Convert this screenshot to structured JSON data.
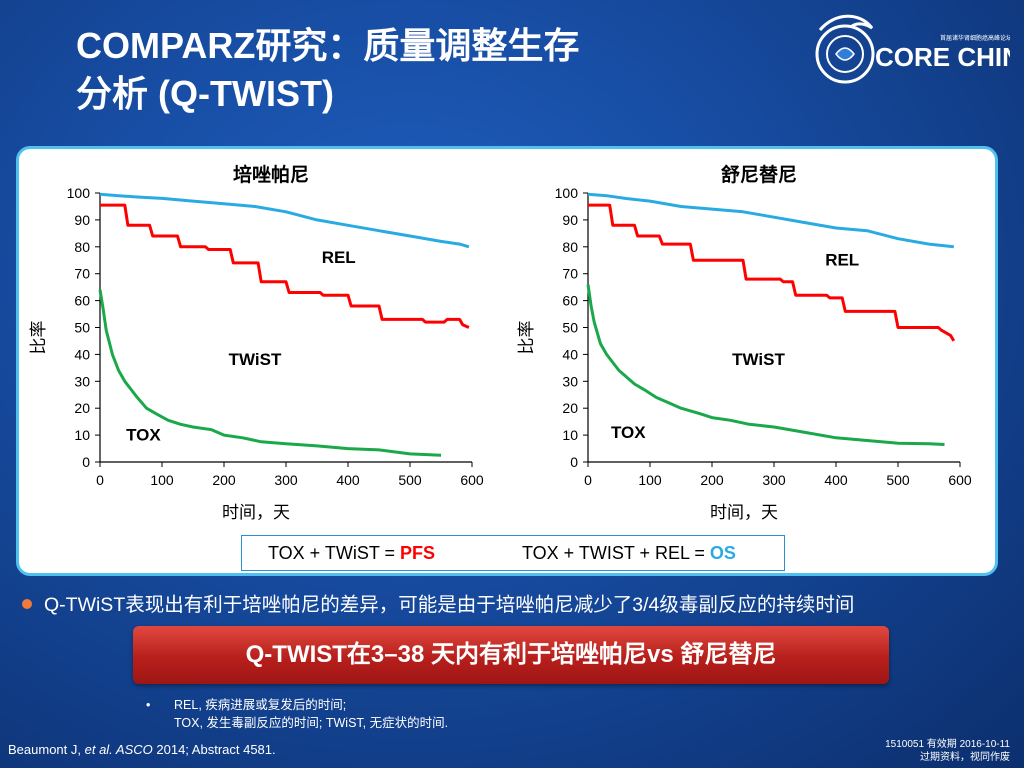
{
  "slide": {
    "title_line1": "COMPARZ研究：质量调整生存",
    "title_line2": "分析 (Q-TWIST)",
    "logo": {
      "text": "CORE CHINA",
      "subtitle": "首届诸华肾细胞癌高峰论坛",
      "accent": "#ffffff"
    },
    "bullet": "Q-TWiST表现出有利于培唑帕尼的差异，可能是由于培唑帕尼减少了3/4级毒副反应的持续时间",
    "banner": "Q-TWIST在3–38 天内有利于培唑帕尼vs 舒尼替尼",
    "notes": {
      "bullet": "•",
      "line1": "REL, 疾病进展或复发后的时间;",
      "line2": "TOX, 发生毒副反应的时间; TWiST, 无症状的时间."
    },
    "citation_prefix": "Beaumont J, ",
    "citation_italic": "et al. ASCO",
    "citation_suffix": " 2014; Abstract 4581.",
    "validity_line1": "1510051  有效期 2016-10-11",
    "validity_line2": "过期资料，视同作废"
  },
  "legend": {
    "left_text": "TOX + TWiST = ",
    "left_key": "PFS",
    "left_color": "#ff0000",
    "right_text": "TOX + TWIST + REL = ",
    "right_key": "OS",
    "right_color": "#29abe2"
  },
  "chart_data": [
    {
      "type": "line",
      "title": "培唑帕尼",
      "xlabel": "时间，天",
      "ylabel": "比率",
      "xlim": [
        0,
        600
      ],
      "ylim": [
        0,
        100
      ],
      "xticks": [
        0,
        100,
        200,
        300,
        400,
        500,
        600
      ],
      "yticks": [
        0,
        10,
        20,
        30,
        40,
        50,
        60,
        70,
        80,
        90,
        100
      ],
      "annotations": [
        {
          "text": "REL",
          "x": 385,
          "y": 74
        },
        {
          "text": "TWiST",
          "x": 250,
          "y": 36
        },
        {
          "text": "TOX",
          "x": 70,
          "y": 8
        }
      ],
      "series": [
        {
          "color": "#29abe2",
          "x": [
            0,
            30,
            60,
            100,
            150,
            200,
            250,
            300,
            350,
            400,
            450,
            500,
            550,
            580,
            595
          ],
          "y": [
            99.5,
            99,
            98.5,
            98,
            97,
            96,
            95,
            93,
            90,
            88,
            86,
            84,
            82,
            81,
            80
          ]
        },
        {
          "color": "#ff0000",
          "x": [
            0,
            40,
            45,
            80,
            85,
            125,
            130,
            170,
            175,
            210,
            215,
            255,
            260,
            300,
            305,
            355,
            360,
            400,
            405,
            450,
            455,
            520,
            525,
            555,
            560,
            580,
            585,
            595
          ],
          "y": [
            95.5,
            95.5,
            88,
            88,
            84,
            84,
            80,
            80,
            79,
            79,
            74,
            74,
            67,
            67,
            63,
            63,
            62,
            62,
            58,
            58,
            53,
            53,
            52,
            52,
            53,
            53,
            51,
            50
          ]
        },
        {
          "color": "#1aa84a",
          "x": [
            0,
            5,
            10,
            20,
            30,
            40,
            50,
            60,
            75,
            90,
            110,
            130,
            150,
            180,
            200,
            230,
            260,
            300,
            350,
            400,
            450,
            500,
            550
          ],
          "y": [
            64,
            57,
            49,
            40,
            34,
            30,
            27,
            24,
            20,
            18,
            15.5,
            14,
            13,
            12,
            10,
            9,
            7.5,
            6.8,
            6,
            5,
            4.5,
            3,
            2.5
          ]
        }
      ]
    },
    {
      "type": "line",
      "title": "舒尼替尼",
      "xlabel": "时间，天",
      "ylabel": "比率",
      "xlim": [
        0,
        600
      ],
      "ylim": [
        0,
        100
      ],
      "xticks": [
        0,
        100,
        200,
        300,
        400,
        500,
        600
      ],
      "yticks": [
        0,
        10,
        20,
        30,
        40,
        50,
        60,
        70,
        80,
        90,
        100
      ],
      "annotations": [
        {
          "text": "REL",
          "x": 410,
          "y": 73
        },
        {
          "text": "TWiST",
          "x": 275,
          "y": 36
        },
        {
          "text": "TOX",
          "x": 65,
          "y": 9
        }
      ],
      "series": [
        {
          "color": "#29abe2",
          "x": [
            0,
            30,
            60,
            100,
            150,
            200,
            250,
            300,
            350,
            400,
            450,
            500,
            550,
            590
          ],
          "y": [
            99.5,
            99,
            98,
            97,
            95,
            94,
            93,
            91,
            89,
            87,
            86,
            83,
            81,
            80
          ]
        },
        {
          "color": "#ff0000",
          "x": [
            0,
            35,
            40,
            75,
            80,
            115,
            120,
            165,
            170,
            250,
            255,
            310,
            315,
            330,
            335,
            385,
            390,
            410,
            415,
            495,
            500,
            565,
            570,
            585,
            590
          ],
          "y": [
            95.5,
            95.5,
            88,
            88,
            84,
            84,
            81,
            81,
            75,
            75,
            68,
            68,
            67,
            67,
            62,
            62,
            61,
            61,
            56,
            56,
            50,
            50,
            49,
            47,
            45
          ]
        },
        {
          "color": "#1aa84a",
          "x": [
            0,
            5,
            10,
            20,
            30,
            40,
            50,
            60,
            75,
            90,
            110,
            130,
            150,
            180,
            200,
            230,
            260,
            300,
            350,
            400,
            450,
            500,
            550,
            575
          ],
          "y": [
            66,
            58,
            52,
            44,
            40,
            37,
            34,
            32,
            29,
            27,
            24,
            22,
            20,
            18,
            16.5,
            15.5,
            14,
            13,
            11,
            9,
            8,
            7,
            6.8,
            6.5
          ]
        }
      ]
    }
  ]
}
